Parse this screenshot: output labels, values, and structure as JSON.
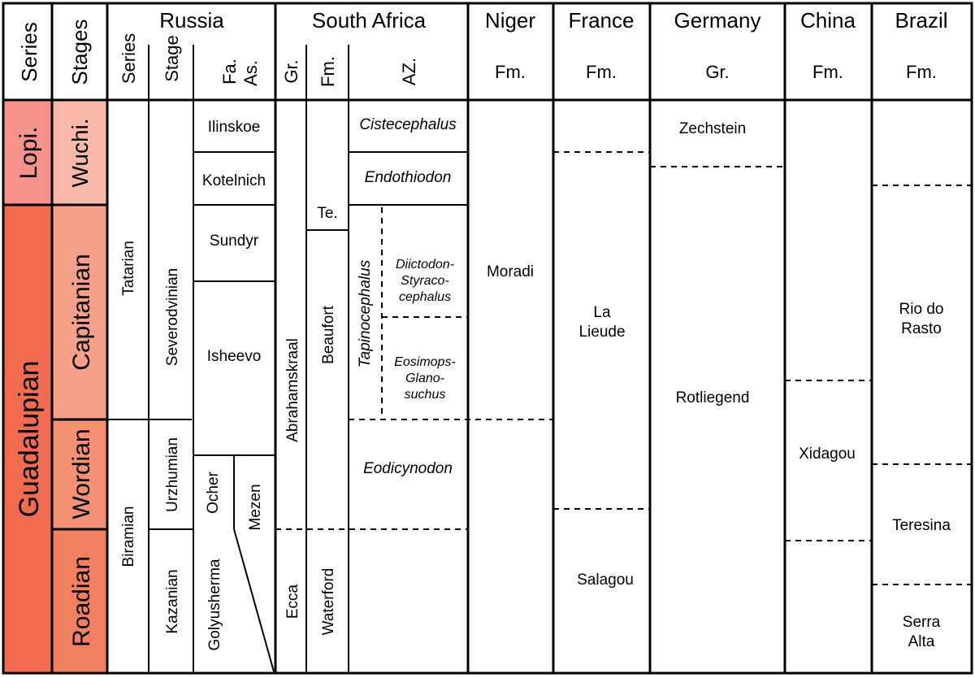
{
  "colors": {
    "lopingian": "#f5928a",
    "guadalupian": "#f26a4f",
    "wuchiapingian": "#f9b9a9",
    "capitanian": "#f5a088",
    "wordian": "#f59173",
    "roadian": "#f28060",
    "line": "#000000",
    "background": "#ffffff"
  },
  "headers": {
    "series": "Series",
    "stages": "Stages",
    "russia": "Russia",
    "russia_series": "Series",
    "russia_stage": "Stage",
    "russia_fa": "Fa.",
    "russia_as": "As.",
    "south_africa": "South Africa",
    "sa_gr": "Gr.",
    "sa_fm": "Fm.",
    "sa_az": "AZ.",
    "niger": "Niger",
    "niger_unit": "Fm.",
    "france": "France",
    "france_unit": "Fm.",
    "germany": "Germany",
    "germany_unit": "Gr.",
    "china": "China",
    "china_unit": "Fm.",
    "brazil": "Brazil",
    "brazil_unit": "Fm."
  },
  "series": {
    "lopingian": "Lopi.",
    "guadalupian": "Guadalupian"
  },
  "stages": {
    "wuchiapingian": "Wuchi.",
    "capitanian": "Capitanian",
    "wordian": "Wordian",
    "roadian": "Roadian"
  },
  "russia": {
    "series": [
      "Tatarian",
      "Biramian"
    ],
    "stages": [
      "Severodvinian",
      "Urzhumian",
      "Kazanian"
    ],
    "assemblages": [
      "Ilinskoe",
      "Kotelnich",
      "Sundyr",
      "Isheevo",
      "Ocher",
      "Mezen",
      "Golyusherma"
    ]
  },
  "south_africa": {
    "groups": [
      "Abrahamskraal",
      "Ecca"
    ],
    "formations": [
      "Te.",
      "Beaufort",
      "Waterford"
    ],
    "zones": {
      "cistecephalus": "Cistecephalus",
      "endothiodon": "Endothiodon",
      "tapinocephalus": "Tapinocephalus",
      "diictodon": [
        "Diictodon-",
        "Styraco-",
        "cephalus"
      ],
      "eosimops": [
        "Eosimops-",
        "Glano-",
        "suchus"
      ],
      "eodicynodon": "Eodicynodon"
    }
  },
  "niger": [
    "Moradi"
  ],
  "france": {
    "la_lieude": [
      "La",
      "Lieude"
    ],
    "salagou": "Salagou"
  },
  "germany": [
    "Zechstein",
    "Rotliegend"
  ],
  "china": [
    "Xidagou"
  ],
  "brazil": {
    "rio_do_rasto": [
      "Rio do",
      "Rasto"
    ],
    "teresina": "Teresina",
    "serra_alta": [
      "Serra",
      "Alta"
    ]
  }
}
